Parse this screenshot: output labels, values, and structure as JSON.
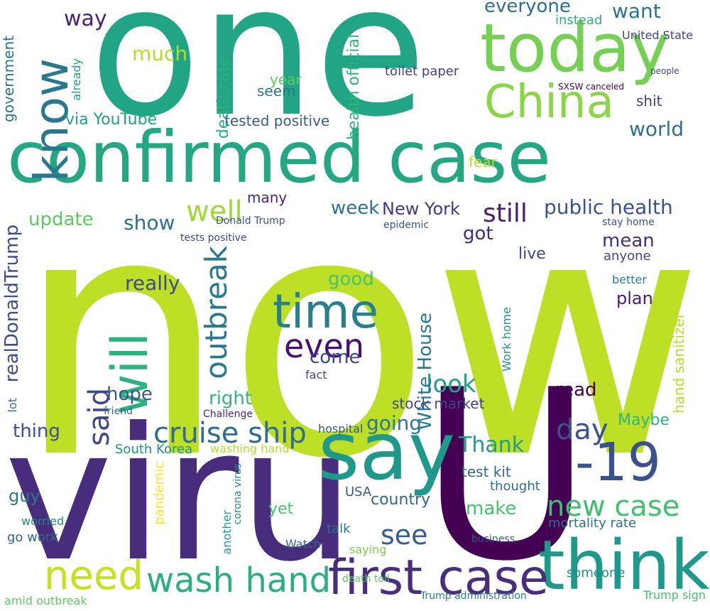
{
  "colors": {
    "dark_purple": "#440154",
    "purple": "#482878",
    "indigo": "#3e4989",
    "blue": "#31688e",
    "teal": "#26828e",
    "green_teal": "#1f9e89",
    "green": "#35b779",
    "light_green": "#6ece58",
    "lime": "#b5de2b",
    "yellow": "#fde725"
  },
  "words": [
    {
      "text": "now",
      "color": "#bddf26"
    },
    {
      "text": "one",
      "color": "#21a585"
    },
    {
      "text": "U",
      "color": "#440154"
    },
    {
      "text": "viru",
      "color": "#472d7b"
    },
    {
      "text": "confirmed case",
      "color": "#26a784"
    },
    {
      "text": "today",
      "color": "#75d054"
    },
    {
      "text": "China",
      "color": "#8bd646"
    },
    {
      "text": "know",
      "color": "#2a788e"
    },
    {
      "text": "say",
      "color": "#1f998a"
    },
    {
      "text": "think",
      "color": "#1f9a8a"
    },
    {
      "text": "first case",
      "color": "#472f7d"
    },
    {
      "text": "need",
      "color": "#c5e021"
    },
    {
      "text": "wash hand",
      "color": "#2ab07f"
    },
    {
      "text": "-19",
      "color": "#3b518b"
    },
    {
      "text": "time",
      "color": "#277f8e"
    },
    {
      "text": "even",
      "color": "#440f76"
    },
    {
      "text": "will",
      "color": "#2db27d"
    },
    {
      "text": "outbreak",
      "color": "#2a788e"
    },
    {
      "text": "well",
      "color": "#a0da39"
    },
    {
      "text": "said",
      "color": "#3f4889"
    },
    {
      "text": "cruise ship",
      "color": "#2f6c8e"
    },
    {
      "text": "day",
      "color": "#3b528b"
    },
    {
      "text": "new case",
      "color": "#43bf71"
    },
    {
      "text": "see",
      "color": "#365d8d"
    },
    {
      "text": "still",
      "color": "#482173"
    },
    {
      "text": "look",
      "color": "#1fa287"
    },
    {
      "text": "public health",
      "color": "#3b528b"
    },
    {
      "text": "New York",
      "color": "#443983"
    },
    {
      "text": "week",
      "color": "#2c728e"
    },
    {
      "text": "world",
      "color": "#2d708e"
    },
    {
      "text": "way",
      "color": "#482374"
    },
    {
      "text": "much",
      "color": "#b2dd2d"
    },
    {
      "text": "everyone",
      "color": "#2d708e"
    },
    {
      "text": "want",
      "color": "#2c728e"
    },
    {
      "text": "United State",
      "color": "#424086"
    },
    {
      "text": "update",
      "color": "#5ec962"
    },
    {
      "text": "show",
      "color": "#2e6e8e"
    },
    {
      "text": "many",
      "color": "#482475"
    },
    {
      "text": "right",
      "color": "#35b779"
    },
    {
      "text": "hope",
      "color": "#38588c"
    },
    {
      "text": "thing",
      "color": "#3b528b"
    },
    {
      "text": "going",
      "color": "#2a788e"
    },
    {
      "text": "Thank",
      "color": "#1f9e89"
    },
    {
      "text": "make",
      "color": "#48c16e"
    },
    {
      "text": "country",
      "color": "#31688e"
    },
    {
      "text": "read",
      "color": "#440154"
    },
    {
      "text": "Maybe",
      "color": "#2fb47c"
    },
    {
      "text": "good",
      "color": "#4ac16d"
    },
    {
      "text": "really",
      "color": "#3e4a89"
    },
    {
      "text": "come",
      "color": "#3e4989"
    },
    {
      "text": "got",
      "color": "#482878"
    },
    {
      "text": "mean",
      "color": "#46307e"
    },
    {
      "text": "plan",
      "color": "#481f70"
    },
    {
      "text": "live",
      "color": "#3f4788"
    },
    {
      "text": "White House",
      "color": "#2a788e"
    },
    {
      "text": "realDonaldTrump",
      "color": "#3d4e8a"
    },
    {
      "text": "government",
      "color": "#2c738e"
    },
    {
      "text": "tested positive",
      "color": "#375b8d"
    },
    {
      "text": "death rate",
      "color": "#29af7f"
    },
    {
      "text": "health official",
      "color": "#2db27d"
    },
    {
      "text": "toilet paper",
      "color": "#414487"
    },
    {
      "text": "year",
      "color": "#5ec962"
    },
    {
      "text": "seem",
      "color": "#2a768e"
    },
    {
      "text": "via YouTube",
      "color": "#1fa188"
    },
    {
      "text": "shit",
      "color": "#433e85"
    },
    {
      "text": "instead",
      "color": "#2fb47c"
    },
    {
      "text": "stock market",
      "color": "#404688"
    },
    {
      "text": "hand sanitizer",
      "color": "#b5de2b"
    },
    {
      "text": "test kit",
      "color": "#31678e"
    },
    {
      "text": "thought",
      "color": "#2d708e"
    },
    {
      "text": "South Korea",
      "color": "#21908d"
    },
    {
      "text": "washing hand",
      "color": "#b5de2b"
    },
    {
      "text": "pandemic",
      "color": "#fde725"
    },
    {
      "text": "corona virus",
      "color": "#228c8d"
    },
    {
      "text": "mortality rate",
      "color": "#2d708e"
    },
    {
      "text": "guy",
      "color": "#2a788e"
    },
    {
      "text": "yet",
      "color": "#4ac16d"
    },
    {
      "text": "talk",
      "color": "#2c728e"
    },
    {
      "text": "anyone",
      "color": "#3e4989"
    },
    {
      "text": "better",
      "color": "#26828e"
    },
    {
      "text": "stay home",
      "color": "#3a538b"
    },
    {
      "text": "fear",
      "color": "#b8de29"
    },
    {
      "text": "epidemic",
      "color": "#3b528b"
    },
    {
      "text": "USA",
      "color": "#38588c"
    },
    {
      "text": "Trump administration",
      "color": "#287d8e"
    },
    {
      "text": "death toll",
      "color": "#60ca60"
    },
    {
      "text": "someone",
      "color": "#21908d"
    },
    {
      "text": "Trump sign",
      "color": "#4ac16d"
    },
    {
      "text": "amid outbreak",
      "color": "#5ec962"
    },
    {
      "text": "go work",
      "color": "#31688e"
    },
    {
      "text": "worried",
      "color": "#24868e"
    },
    {
      "text": "Challenge",
      "color": "#482878"
    },
    {
      "text": "friend",
      "color": "#31688e"
    },
    {
      "text": "hospital",
      "color": "#3b528b"
    },
    {
      "text": "Watch",
      "color": "#31688e"
    },
    {
      "text": "saying",
      "color": "#7ad151"
    },
    {
      "text": "another",
      "color": "#1e9b8a"
    },
    {
      "text": "business",
      "color": "#3b528b"
    },
    {
      "text": "Donald Trump",
      "color": "#3b528b"
    },
    {
      "text": "fact",
      "color": "#3e4989"
    },
    {
      "text": "tests positive",
      "color": "#3e4989"
    },
    {
      "text": "already",
      "color": "#1f9e89"
    },
    {
      "text": "Work home",
      "color": "#21908d"
    },
    {
      "text": "SXSW canceled",
      "color": "#440154"
    },
    {
      "text": "people",
      "color": "#3e4989"
    },
    {
      "text": "lot",
      "color": "#2c728e"
    }
  ]
}
